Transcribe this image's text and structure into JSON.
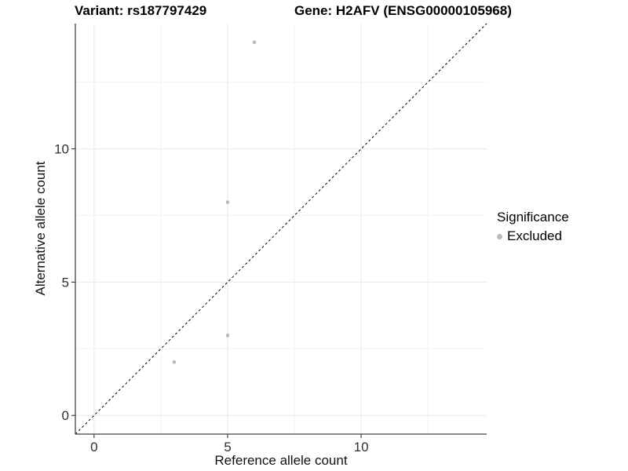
{
  "header": {
    "variant_title": "Variant: rs187797429",
    "gene_title": "Gene: H2AFV (ENSG00000105968)"
  },
  "axes": {
    "x_label": "Reference allele count",
    "y_label": "Alternative allele count"
  },
  "legend": {
    "title": "Significance",
    "items": [
      {
        "label": "Excluded",
        "color": "#b9b9b9"
      }
    ]
  },
  "chart_data": {
    "type": "scatter",
    "title": "Variant: rs187797429 / Gene: H2AFV (ENSG00000105968)",
    "xlabel": "Reference allele count",
    "ylabel": "Alternative allele count",
    "xlim": [
      -0.7,
      14.7
    ],
    "ylim": [
      -0.7,
      14.7
    ],
    "x_major_ticks": [
      0,
      5,
      10
    ],
    "y_major_ticks": [
      0,
      5,
      10
    ],
    "x_minor_ticks": [
      2.5,
      7.5,
      12.5
    ],
    "y_minor_ticks": [
      2.5,
      7.5,
      12.5
    ],
    "grid": true,
    "legend_position": "right-middle",
    "series": [
      {
        "name": "Excluded",
        "color": "#b9b9b9",
        "points": [
          [
            3,
            2
          ],
          [
            5,
            3
          ],
          [
            5,
            8
          ],
          [
            6,
            14
          ]
        ]
      }
    ],
    "reference_line": {
      "kind": "identity",
      "slope": 1,
      "intercept": 0,
      "style": "dashed",
      "color": "#000000"
    }
  },
  "colors": {
    "background": "#ffffff",
    "grid_major": "#e8e8e8",
    "grid_minor": "#f3f3f3",
    "axis_line": "#404040",
    "tick_text": "#303030",
    "point": "#b9b9b9"
  }
}
